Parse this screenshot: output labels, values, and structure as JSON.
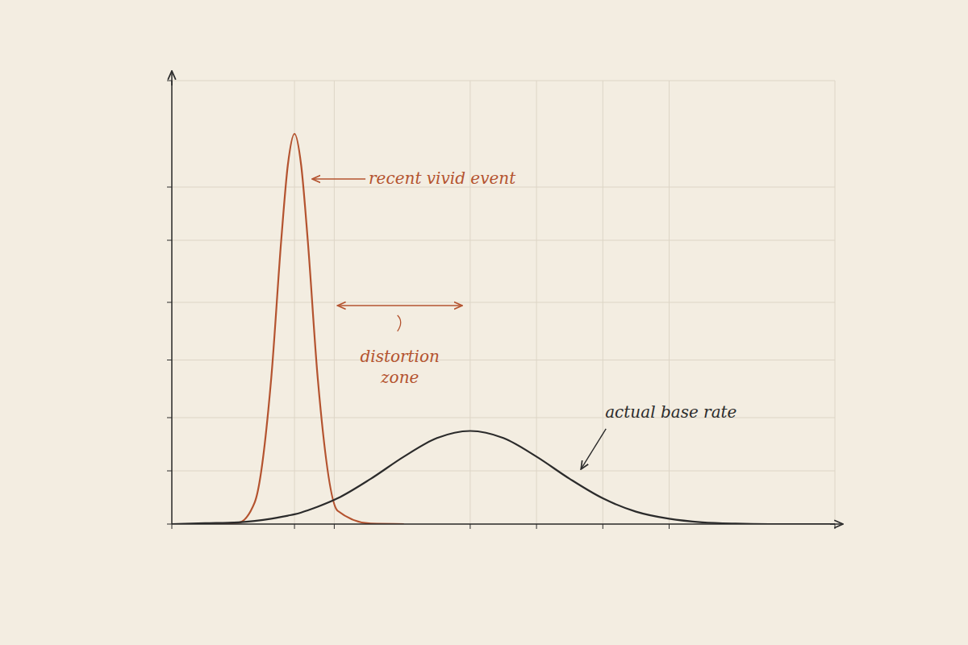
{
  "chart_data": {
    "type": "line",
    "x": [
      0,
      0.5,
      1,
      1.25,
      1.5,
      1.65,
      1.75,
      1.85,
      1.95,
      2.05,
      2.2,
      2.5,
      3,
      3.5,
      4,
      4.5,
      5,
      5.5,
      6,
      6.5,
      7,
      7.5,
      8,
      8.5,
      9,
      9.5,
      10
    ],
    "series": [
      {
        "name": "recent vivid event",
        "color": "#b4532f",
        "values": [
          0,
          0,
          0.03,
          0.49,
          3.3,
          6.4,
          8.1,
          8.8,
          8.1,
          6.4,
          3.3,
          0.3,
          0.01,
          0,
          null,
          null,
          null,
          null,
          null,
          null,
          null,
          null,
          null,
          null,
          null,
          null,
          null
        ]
      },
      {
        "name": "actual base rate",
        "color": "#2b2b2b",
        "values": [
          0,
          0.02,
          0.04,
          0.07,
          0.12,
          0.16,
          0.19,
          0.22,
          0.26,
          0.31,
          0.39,
          0.58,
          1.02,
          1.52,
          1.94,
          2.1,
          1.94,
          1.52,
          1.02,
          0.58,
          0.28,
          0.12,
          0.04,
          0.01,
          0,
          0,
          0
        ]
      }
    ],
    "annotations": [
      "distortion zone"
    ],
    "xlim": [
      0,
      10
    ],
    "ylim": [
      0,
      10
    ],
    "xticks": [
      0,
      1.85,
      2.45,
      4.5,
      5.5,
      6.5,
      7.5,
      10
    ],
    "yticks": [
      0,
      1.2,
      2.4,
      3.7,
      5,
      6.4,
      7.6,
      10
    ],
    "grid": true,
    "tick_labels": false
  }
}
